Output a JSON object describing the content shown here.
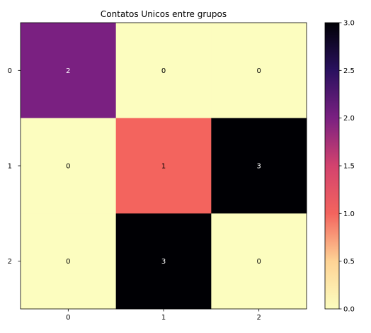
{
  "chart_data": {
    "type": "heatmap",
    "title": "Contatos Unicos entre grupos",
    "xlabel": "",
    "ylabel": "",
    "x_ticks": [
      "0",
      "1",
      "2"
    ],
    "y_ticks": [
      "0",
      "1",
      "2"
    ],
    "values": [
      [
        2,
        0,
        0
      ],
      [
        0,
        1,
        3
      ],
      [
        0,
        3,
        0
      ]
    ],
    "annotations": [
      [
        "2",
        "0",
        "0"
      ],
      [
        "0",
        "1",
        "3"
      ],
      [
        "0",
        "3",
        "0"
      ]
    ],
    "colormap": "magma_r",
    "vmin": 0,
    "vmax": 3,
    "colorbar_ticks": [
      "0.0",
      "0.5",
      "1.0",
      "1.5",
      "2.0",
      "2.5",
      "3.0"
    ],
    "grid": false
  }
}
